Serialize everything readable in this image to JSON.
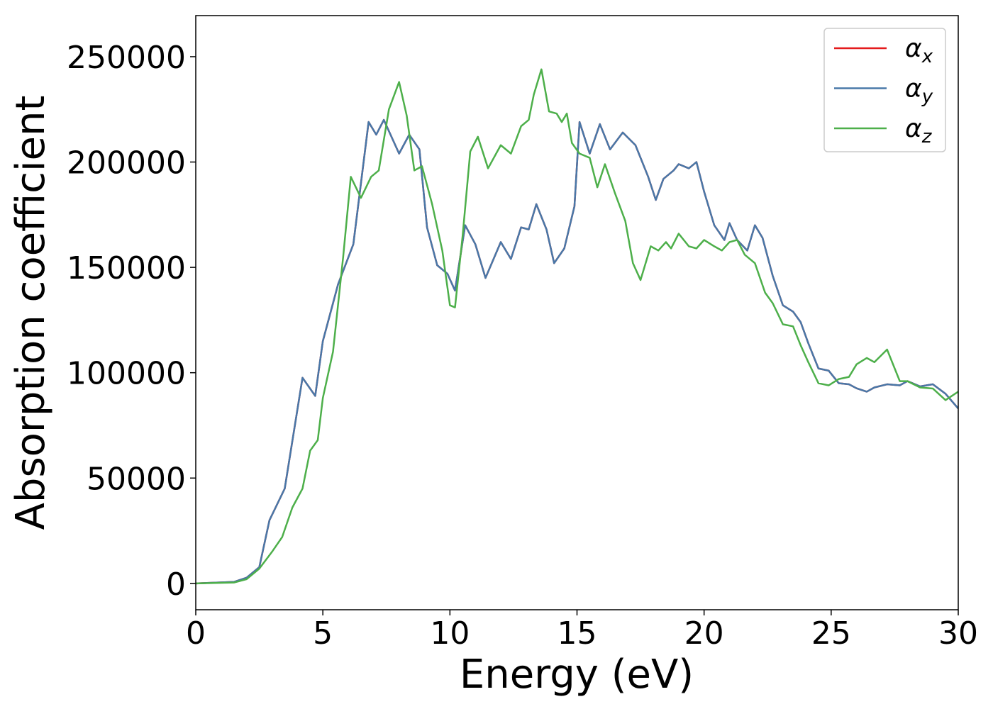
{
  "chart_data": {
    "type": "line",
    "xlabel": "Energy (eV)",
    "ylabel": "Absorption coefficient",
    "xlim": [
      0,
      30
    ],
    "xticks": [
      0,
      5,
      10,
      15,
      20,
      25,
      30
    ],
    "ylim": [
      -12500,
      269500
    ],
    "yticks": [
      0,
      50000,
      100000,
      150000,
      200000,
      250000
    ],
    "legend": "upper right",
    "series": [
      {
        "name": "αx",
        "color": "#e41a1c",
        "x": [
          0,
          1.5,
          2.0,
          2.5,
          2.9,
          3.5,
          4.2,
          4.7,
          5.0,
          5.6,
          6.2,
          6.8,
          7.1,
          7.4,
          8.0,
          8.4,
          8.8,
          9.1,
          9.5,
          9.9,
          10.2,
          10.6,
          11.0,
          11.4,
          12.0,
          12.4,
          12.8,
          13.1,
          13.4,
          13.8,
          14.1,
          14.5,
          14.9,
          15.1,
          15.5,
          15.9,
          16.3,
          16.8,
          17.3,
          17.8,
          18.1,
          18.4,
          18.8,
          19.0,
          19.4,
          19.7,
          20.0,
          20.4,
          20.8,
          21.0,
          21.3,
          21.7,
          22.0,
          22.3,
          22.7,
          23.1,
          23.5,
          23.8,
          24.1,
          24.5,
          24.9,
          25.3,
          25.7,
          26.0,
          26.4,
          26.7,
          27.2,
          27.7,
          28.0,
          28.5,
          29.0,
          29.5,
          30.0
        ],
        "values": [
          0,
          700,
          2700,
          7700,
          30000,
          45000,
          97600,
          89000,
          115000,
          142000,
          161000,
          219000,
          213000,
          220000,
          204000,
          213000,
          206000,
          169000,
          151000,
          147000,
          139000,
          170000,
          161000,
          145000,
          162000,
          154000,
          169000,
          168000,
          180000,
          168000,
          152000,
          159000,
          179000,
          219000,
          204000,
          218000,
          206000,
          214000,
          208000,
          193000,
          182000,
          192000,
          196000,
          199000,
          197000,
          200000,
          186000,
          170000,
          163000,
          171000,
          163000,
          158000,
          170000,
          164000,
          146000,
          132000,
          129000,
          124000,
          114000,
          102000,
          101000,
          95000,
          94500,
          92600,
          91000,
          93000,
          94500,
          94000,
          96000,
          93500,
          94500,
          90000,
          83000
        ]
      },
      {
        "name": "αy",
        "color": "#4878a8",
        "x": [
          0,
          1.5,
          2.0,
          2.5,
          2.9,
          3.5,
          4.2,
          4.7,
          5.0,
          5.6,
          6.2,
          6.8,
          7.1,
          7.4,
          8.0,
          8.4,
          8.8,
          9.1,
          9.5,
          9.9,
          10.2,
          10.6,
          11.0,
          11.4,
          12.0,
          12.4,
          12.8,
          13.1,
          13.4,
          13.8,
          14.1,
          14.5,
          14.9,
          15.1,
          15.5,
          15.9,
          16.3,
          16.8,
          17.3,
          17.8,
          18.1,
          18.4,
          18.8,
          19.0,
          19.4,
          19.7,
          20.0,
          20.4,
          20.8,
          21.0,
          21.3,
          21.7,
          22.0,
          22.3,
          22.7,
          23.1,
          23.5,
          23.8,
          24.1,
          24.5,
          24.9,
          25.3,
          25.7,
          26.0,
          26.4,
          26.7,
          27.2,
          27.7,
          28.0,
          28.5,
          29.0,
          29.5,
          30.0
        ],
        "values": [
          0,
          700,
          2700,
          7700,
          30000,
          45000,
          97600,
          89000,
          115000,
          142000,
          161000,
          219000,
          213000,
          220000,
          204000,
          213000,
          206000,
          169000,
          151000,
          147000,
          139000,
          170000,
          161000,
          145000,
          162000,
          154000,
          169000,
          168000,
          180000,
          168000,
          152000,
          159000,
          179000,
          219000,
          204000,
          218000,
          206000,
          214000,
          208000,
          193000,
          182000,
          192000,
          196000,
          199000,
          197000,
          200000,
          186000,
          170000,
          163000,
          171000,
          163000,
          158000,
          170000,
          164000,
          146000,
          132000,
          129000,
          124000,
          114000,
          102000,
          101000,
          95000,
          94500,
          92600,
          91000,
          93000,
          94500,
          94000,
          96000,
          93500,
          94500,
          90000,
          83000
        ]
      },
      {
        "name": "αz",
        "color": "#4daf4a",
        "x": [
          0,
          1.5,
          2.0,
          2.5,
          3.0,
          3.4,
          3.8,
          4.2,
          4.5,
          4.8,
          5.0,
          5.4,
          5.8,
          6.1,
          6.5,
          6.9,
          7.2,
          7.6,
          8.0,
          8.3,
          8.6,
          8.9,
          9.3,
          9.7,
          10.0,
          10.2,
          10.5,
          10.8,
          11.1,
          11.5,
          12.0,
          12.4,
          12.8,
          13.1,
          13.3,
          13.6,
          13.9,
          14.2,
          14.4,
          14.6,
          14.8,
          15.1,
          15.5,
          15.8,
          16.1,
          16.5,
          16.9,
          17.2,
          17.5,
          17.9,
          18.2,
          18.5,
          18.7,
          19.0,
          19.4,
          19.7,
          20.0,
          20.4,
          20.7,
          21.0,
          21.3,
          21.6,
          22.0,
          22.4,
          22.7,
          23.1,
          23.5,
          23.8,
          24.1,
          24.5,
          24.9,
          25.3,
          25.7,
          26.0,
          26.4,
          26.7,
          27.2,
          27.7,
          28.0,
          28.5,
          29.0,
          29.5,
          30.0
        ],
        "values": [
          0,
          400,
          2000,
          7000,
          15000,
          22000,
          36000,
          45000,
          63000,
          68000,
          88000,
          110000,
          155000,
          193000,
          183000,
          193000,
          196000,
          225000,
          238000,
          222000,
          196000,
          198000,
          180000,
          158000,
          132000,
          131000,
          165000,
          205000,
          212000,
          197000,
          208000,
          204000,
          217000,
          220000,
          232000,
          244000,
          224000,
          223000,
          219000,
          223000,
          209000,
          204000,
          202000,
          188000,
          199000,
          185000,
          172000,
          152000,
          144000,
          160000,
          158000,
          162000,
          159000,
          166000,
          160000,
          159000,
          163000,
          160000,
          158000,
          162000,
          163000,
          156000,
          152000,
          138000,
          133000,
          123000,
          122000,
          113000,
          105000,
          95000,
          94000,
          97000,
          98000,
          104000,
          107000,
          105000,
          111000,
          96000,
          96000,
          93000,
          92500,
          87000,
          91000
        ]
      }
    ]
  }
}
